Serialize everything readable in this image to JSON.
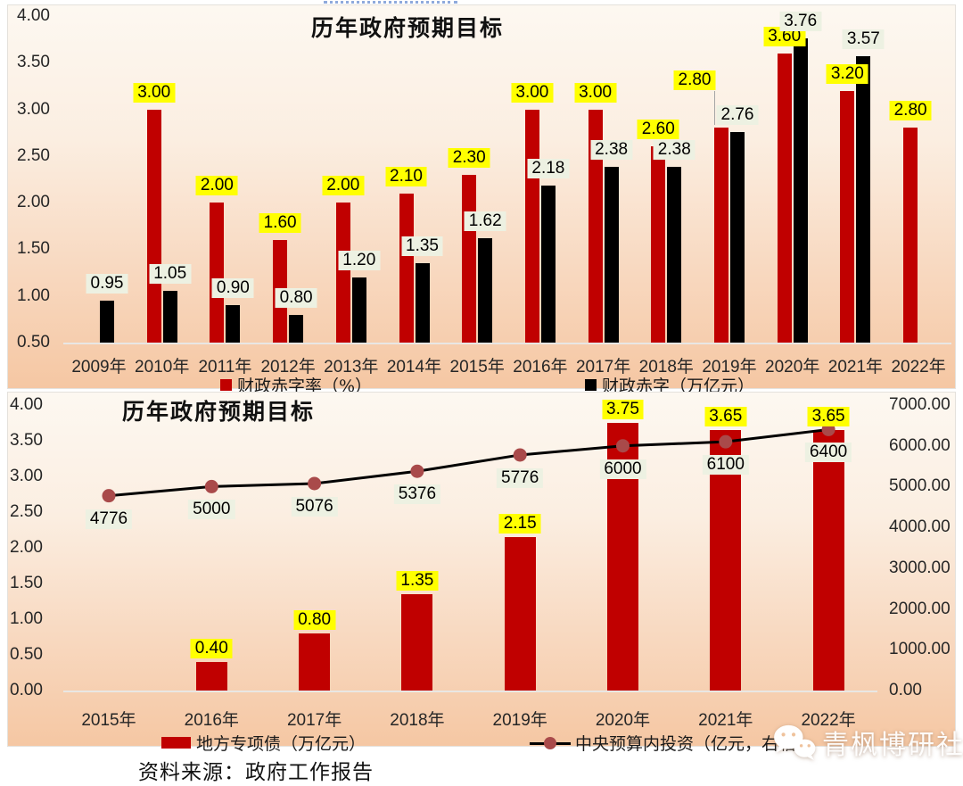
{
  "page": {
    "source_note": "资料来源：政府工作报告",
    "watermark_text": "青枫博研社"
  },
  "colors": {
    "bar_red": "#C00000",
    "bar_black": "#000000",
    "label_yellow": "#FFFF00",
    "label_cream": "#EDF1E2",
    "line_black": "#000000",
    "marker_red": "#A94A4A"
  },
  "chart_data": [
    {
      "type": "bar",
      "title": "历年政府预期目标",
      "categories": [
        "2009年",
        "2010年",
        "2011年",
        "2012年",
        "2013年",
        "2014年",
        "2015年",
        "2016年",
        "2017年",
        "2018年",
        "2019年",
        "2020年",
        "2021年",
        "2022年"
      ],
      "series": [
        {
          "name": "财政赤字率（%）",
          "color": "#C00000",
          "label_bg": "#FFFF00",
          "values": [
            null,
            3.0,
            2.0,
            1.6,
            2.0,
            2.1,
            2.3,
            3.0,
            3.0,
            2.6,
            2.8,
            3.6,
            3.2,
            2.8
          ],
          "label_adjust": {
            "10": {
              "dx": -30,
              "dy": -34,
              "leader": true
            }
          }
        },
        {
          "name": "财政赤字（万亿元）",
          "color": "#000000",
          "label_bg": "#EDF1E2",
          "values": [
            0.95,
            1.05,
            0.9,
            0.8,
            1.2,
            1.35,
            1.62,
            2.18,
            2.38,
            2.38,
            2.76,
            3.76,
            3.57,
            null
          ],
          "label_adjust": {}
        }
      ],
      "ylim": [
        0.5,
        4.0
      ],
      "ytick_step": 0.5,
      "grid": false,
      "legend_position": "bottom",
      "value_format_decimals": 2
    },
    {
      "type": "bar+line",
      "title": "历年政府预期目标",
      "categories": [
        "2015年",
        "2016年",
        "2017年",
        "2018年",
        "2019年",
        "2020年",
        "2021年",
        "2022年"
      ],
      "bar_series": {
        "name": "地方专项债（万亿元）",
        "color": "#C00000",
        "label_bg": "#FFFF00",
        "axis": "left",
        "values": [
          null,
          0.4,
          0.8,
          1.35,
          2.15,
          3.75,
          3.65,
          3.65
        ]
      },
      "line_series": {
        "name": "中央预算内投资（亿元，右轴）",
        "color": "#000000",
        "marker_color": "#A94A4A",
        "label_bg": "#EDF1E2",
        "axis": "right",
        "values": [
          4776,
          5000,
          5076,
          5376,
          5776,
          6000,
          6100,
          6400
        ]
      },
      "left_ylim": [
        0,
        4.0
      ],
      "left_step": 0.5,
      "right_ylim": [
        0,
        7000
      ],
      "right_step": 1000,
      "grid": false,
      "legend_position": "bottom"
    }
  ]
}
